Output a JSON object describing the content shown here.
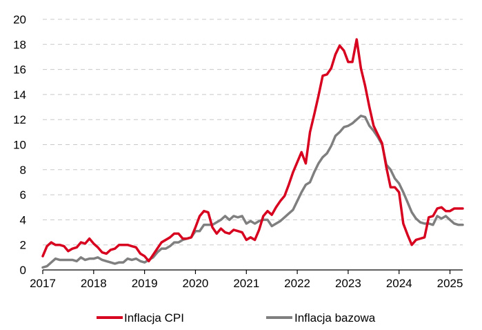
{
  "chart_data": {
    "type": "line",
    "title": "",
    "xlabel": "",
    "ylabel": "",
    "ylim": [
      0,
      20
    ],
    "xlim": [
      2017,
      2025.25
    ],
    "y_ticks": [
      "0",
      "2",
      "4",
      "6",
      "8",
      "10",
      "12",
      "14",
      "16",
      "18",
      "20"
    ],
    "x_ticks": [
      "2017",
      "2018",
      "2019",
      "2020",
      "2021",
      "2022",
      "2023",
      "2024",
      "2025"
    ],
    "grid": "horizontal-dashed",
    "legend_position": "bottom",
    "series": [
      {
        "name": "Inflacja CPI",
        "color": "#d7001e",
        "points": [
          [
            2017.0,
            1.1
          ],
          [
            2017.083,
            1.9
          ],
          [
            2017.167,
            2.2
          ],
          [
            2017.25,
            2.0
          ],
          [
            2017.333,
            2.0
          ],
          [
            2017.417,
            1.9
          ],
          [
            2017.5,
            1.5
          ],
          [
            2017.583,
            1.7
          ],
          [
            2017.667,
            1.8
          ],
          [
            2017.75,
            2.2
          ],
          [
            2017.833,
            2.1
          ],
          [
            2017.917,
            2.5
          ],
          [
            2018.0,
            2.1
          ],
          [
            2018.083,
            1.8
          ],
          [
            2018.167,
            1.4
          ],
          [
            2018.25,
            1.3
          ],
          [
            2018.333,
            1.6
          ],
          [
            2018.417,
            1.7
          ],
          [
            2018.5,
            2.0
          ],
          [
            2018.583,
            2.0
          ],
          [
            2018.667,
            2.0
          ],
          [
            2018.75,
            1.9
          ],
          [
            2018.833,
            1.8
          ],
          [
            2018.917,
            1.3
          ],
          [
            2019.0,
            1.1
          ],
          [
            2019.083,
            0.7
          ],
          [
            2019.167,
            1.2
          ],
          [
            2019.25,
            1.7
          ],
          [
            2019.333,
            2.2
          ],
          [
            2019.417,
            2.4
          ],
          [
            2019.5,
            2.6
          ],
          [
            2019.583,
            2.9
          ],
          [
            2019.667,
            2.9
          ],
          [
            2019.75,
            2.5
          ],
          [
            2019.833,
            2.5
          ],
          [
            2019.917,
            2.6
          ],
          [
            2020.0,
            3.4
          ],
          [
            2020.083,
            4.3
          ],
          [
            2020.167,
            4.7
          ],
          [
            2020.25,
            4.6
          ],
          [
            2020.333,
            3.4
          ],
          [
            2020.417,
            2.9
          ],
          [
            2020.5,
            3.3
          ],
          [
            2020.583,
            3.0
          ],
          [
            2020.667,
            2.9
          ],
          [
            2020.75,
            3.2
          ],
          [
            2020.833,
            3.1
          ],
          [
            2020.917,
            3.0
          ],
          [
            2021.0,
            2.4
          ],
          [
            2021.083,
            2.6
          ],
          [
            2021.167,
            2.4
          ],
          [
            2021.25,
            3.2
          ],
          [
            2021.333,
            4.3
          ],
          [
            2021.417,
            4.7
          ],
          [
            2021.5,
            4.4
          ],
          [
            2021.583,
            5.0
          ],
          [
            2021.667,
            5.5
          ],
          [
            2021.75,
            5.9
          ],
          [
            2021.833,
            6.8
          ],
          [
            2021.917,
            7.8
          ],
          [
            2022.0,
            8.6
          ],
          [
            2022.083,
            9.4
          ],
          [
            2022.167,
            8.5
          ],
          [
            2022.25,
            11.0
          ],
          [
            2022.333,
            12.4
          ],
          [
            2022.417,
            13.9
          ],
          [
            2022.5,
            15.5
          ],
          [
            2022.583,
            15.6
          ],
          [
            2022.667,
            16.1
          ],
          [
            2022.75,
            17.2
          ],
          [
            2022.833,
            17.9
          ],
          [
            2022.917,
            17.5
          ],
          [
            2023.0,
            16.6
          ],
          [
            2023.083,
            16.6
          ],
          [
            2023.167,
            18.4
          ],
          [
            2023.25,
            16.1
          ],
          [
            2023.333,
            14.7
          ],
          [
            2023.417,
            13.0
          ],
          [
            2023.5,
            11.5
          ],
          [
            2023.583,
            10.8
          ],
          [
            2023.667,
            10.1
          ],
          [
            2023.75,
            8.2
          ],
          [
            2023.833,
            6.6
          ],
          [
            2023.917,
            6.6
          ],
          [
            2024.0,
            6.2
          ],
          [
            2024.083,
            3.7
          ],
          [
            2024.167,
            2.8
          ],
          [
            2024.25,
            2.0
          ],
          [
            2024.333,
            2.4
          ],
          [
            2024.417,
            2.5
          ],
          [
            2024.5,
            2.6
          ],
          [
            2024.583,
            4.2
          ],
          [
            2024.667,
            4.3
          ],
          [
            2024.75,
            4.9
          ],
          [
            2024.833,
            5.0
          ],
          [
            2024.917,
            4.7
          ],
          [
            2025.0,
            4.7
          ],
          [
            2025.083,
            4.9
          ],
          [
            2025.167,
            4.9
          ],
          [
            2025.25,
            4.9
          ]
        ]
      },
      {
        "name": "Inflacja bazowa",
        "color": "#7f7f7f",
        "points": [
          [
            2017.0,
            0.2
          ],
          [
            2017.083,
            0.3
          ],
          [
            2017.167,
            0.6
          ],
          [
            2017.25,
            0.9
          ],
          [
            2017.333,
            0.8
          ],
          [
            2017.417,
            0.8
          ],
          [
            2017.5,
            0.8
          ],
          [
            2017.583,
            0.8
          ],
          [
            2017.667,
            0.7
          ],
          [
            2017.75,
            1.0
          ],
          [
            2017.833,
            0.8
          ],
          [
            2017.917,
            0.9
          ],
          [
            2018.0,
            0.9
          ],
          [
            2018.083,
            1.0
          ],
          [
            2018.167,
            0.8
          ],
          [
            2018.25,
            0.7
          ],
          [
            2018.333,
            0.6
          ],
          [
            2018.417,
            0.5
          ],
          [
            2018.5,
            0.6
          ],
          [
            2018.583,
            0.6
          ],
          [
            2018.667,
            0.9
          ],
          [
            2018.75,
            0.8
          ],
          [
            2018.833,
            0.9
          ],
          [
            2018.917,
            0.7
          ],
          [
            2019.0,
            0.6
          ],
          [
            2019.083,
            0.8
          ],
          [
            2019.167,
            1.0
          ],
          [
            2019.25,
            1.4
          ],
          [
            2019.333,
            1.7
          ],
          [
            2019.417,
            1.7
          ],
          [
            2019.5,
            1.9
          ],
          [
            2019.583,
            2.2
          ],
          [
            2019.667,
            2.2
          ],
          [
            2019.75,
            2.4
          ],
          [
            2019.833,
            2.5
          ],
          [
            2019.917,
            2.6
          ],
          [
            2020.0,
            3.1
          ],
          [
            2020.083,
            3.1
          ],
          [
            2020.167,
            3.6
          ],
          [
            2020.25,
            3.6
          ],
          [
            2020.333,
            3.6
          ],
          [
            2020.417,
            3.8
          ],
          [
            2020.5,
            4.0
          ],
          [
            2020.583,
            4.3
          ],
          [
            2020.667,
            4.0
          ],
          [
            2020.75,
            4.3
          ],
          [
            2020.833,
            4.2
          ],
          [
            2020.917,
            4.3
          ],
          [
            2021.0,
            3.7
          ],
          [
            2021.083,
            3.9
          ],
          [
            2021.167,
            3.7
          ],
          [
            2021.25,
            3.9
          ],
          [
            2021.333,
            4.0
          ],
          [
            2021.417,
            4.0
          ],
          [
            2021.5,
            3.5
          ],
          [
            2021.583,
            3.7
          ],
          [
            2021.667,
            3.9
          ],
          [
            2021.75,
            4.2
          ],
          [
            2021.833,
            4.5
          ],
          [
            2021.917,
            4.8
          ],
          [
            2022.0,
            5.5
          ],
          [
            2022.083,
            6.2
          ],
          [
            2022.167,
            6.8
          ],
          [
            2022.25,
            7.0
          ],
          [
            2022.333,
            7.8
          ],
          [
            2022.417,
            8.5
          ],
          [
            2022.5,
            9.0
          ],
          [
            2022.583,
            9.3
          ],
          [
            2022.667,
            9.9
          ],
          [
            2022.75,
            10.7
          ],
          [
            2022.833,
            11.0
          ],
          [
            2022.917,
            11.4
          ],
          [
            2023.0,
            11.5
          ],
          [
            2023.083,
            11.7
          ],
          [
            2023.167,
            12.0
          ],
          [
            2023.25,
            12.3
          ],
          [
            2023.333,
            12.2
          ],
          [
            2023.417,
            11.5
          ],
          [
            2023.5,
            11.1
          ],
          [
            2023.583,
            10.6
          ],
          [
            2023.667,
            10.0
          ],
          [
            2023.75,
            8.4
          ],
          [
            2023.833,
            8.0
          ],
          [
            2023.917,
            7.3
          ],
          [
            2024.0,
            6.9
          ],
          [
            2024.083,
            6.2
          ],
          [
            2024.167,
            5.4
          ],
          [
            2024.25,
            4.6
          ],
          [
            2024.333,
            4.1
          ],
          [
            2024.417,
            3.8
          ],
          [
            2024.5,
            3.7
          ],
          [
            2024.583,
            3.7
          ],
          [
            2024.667,
            3.6
          ],
          [
            2024.75,
            4.3
          ],
          [
            2024.833,
            4.1
          ],
          [
            2024.917,
            4.3
          ],
          [
            2025.0,
            4.0
          ],
          [
            2025.083,
            3.7
          ],
          [
            2025.167,
            3.6
          ],
          [
            2025.25,
            3.6
          ]
        ]
      }
    ]
  }
}
